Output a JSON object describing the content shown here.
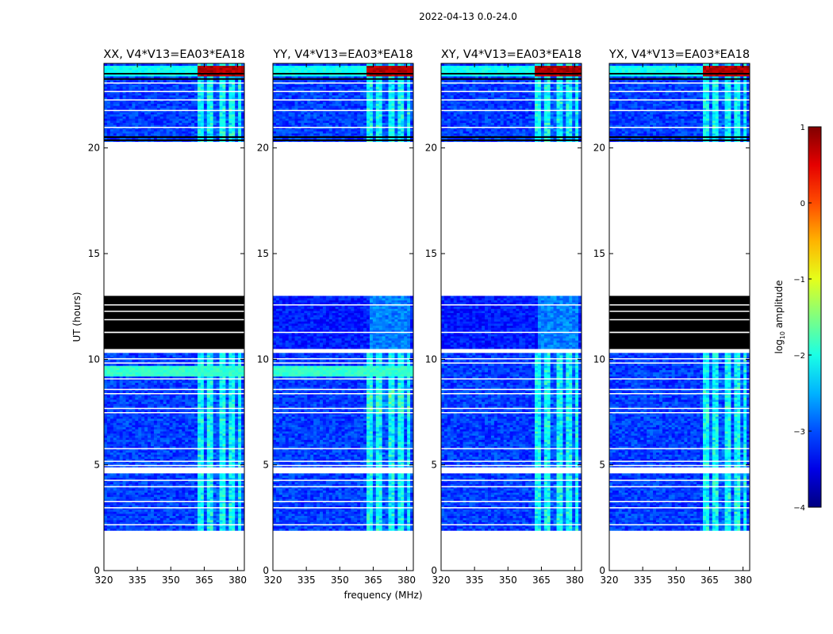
{
  "chart_data": {
    "type": "heatmap",
    "suptitle": "2022-04-13 0.0-24.0",
    "xlabel": "frequency (MHz)",
    "ylabel": "UT (hours)",
    "xlim": [
      320,
      383
    ],
    "ylim": [
      0,
      24
    ],
    "xticks": [
      320,
      335,
      350,
      365,
      380
    ],
    "yticks": [
      0,
      5,
      10,
      15,
      20
    ],
    "colorbar": {
      "label": "log10 amplitude",
      "label_main": "log",
      "label_sub": "10",
      "label_rest": " amplitude",
      "range": [
        -4,
        1
      ],
      "ticks": [
        1,
        0,
        -1,
        -2,
        -3,
        -4
      ],
      "colormap": "jet"
    },
    "panels": [
      {
        "title": "XX, V4*V13=EA03*EA18",
        "polarization": "XX",
        "mid_block": "flagged"
      },
      {
        "title": "YY, V4*V13=EA03*EA18",
        "polarization": "YY",
        "mid_block": "data"
      },
      {
        "title": "XY, V4*V13=EA03*EA18",
        "polarization": "XY",
        "mid_block": "data"
      },
      {
        "title": "YX, V4*V13=EA03*EA18",
        "polarization": "YX",
        "mid_block": "flagged"
      }
    ],
    "time_segments_hours": [
      {
        "start": 1.9,
        "end": 4.6,
        "state": "data"
      },
      {
        "start": 4.9,
        "end": 10.3,
        "state": "data"
      },
      {
        "start": 10.5,
        "end": 13.0,
        "state": "panel-dependent"
      },
      {
        "start": 20.3,
        "end": 24.0,
        "state": "data"
      }
    ],
    "rfi_band_mhz": [
      362,
      381
    ]
  }
}
